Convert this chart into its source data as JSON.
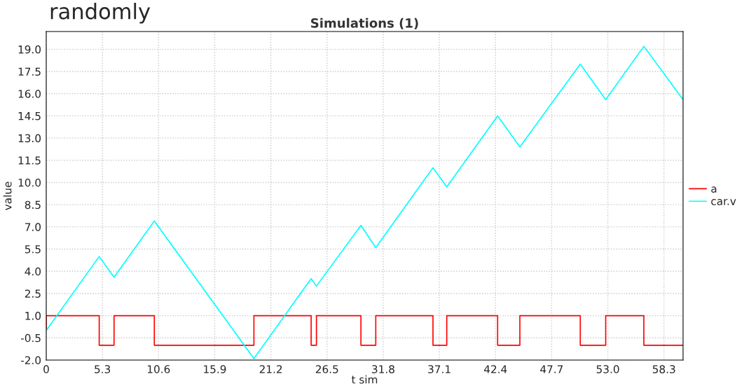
{
  "chart_data": {
    "type": "line",
    "title": "Simulations (1)",
    "xlabel": "t sim",
    "ylabel": "value",
    "annotations": [
      "randomly"
    ],
    "xlim": [
      0,
      60.1
    ],
    "ylim": [
      -2.0,
      20.2
    ],
    "xticks": [
      {
        "value": 0,
        "label": "0"
      },
      5.3,
      10.6,
      15.9,
      21.2,
      26.5,
      31.8,
      37.1,
      42.4,
      47.7,
      {
        "value": 53.0,
        "label": "53.0"
      },
      58.3
    ],
    "yticks": [
      {
        "value": -2.0,
        "label": "-2.0"
      },
      {
        "value": -0.5,
        "label": "-0.5"
      },
      {
        "value": 1.0,
        "label": "1.0"
      },
      2.5,
      {
        "value": 4.0,
        "label": "4.0"
      },
      5.5,
      {
        "value": 7.0,
        "label": "7.0"
      },
      8.5,
      {
        "value": 10.0,
        "label": "10.0"
      },
      11.5,
      {
        "value": 13.0,
        "label": "13.0"
      },
      14.5,
      {
        "value": 16.0,
        "label": "16.0"
      },
      17.5,
      {
        "value": 19.0,
        "label": "19.0"
      }
    ],
    "grid": true,
    "legend": "right",
    "series": [
      {
        "name": "a",
        "type": "step",
        "color": "#ff0000",
        "x": [
          0,
          0.0,
          5.0,
          6.4,
          10.2,
          19.6,
          25.0,
          25.5,
          29.7,
          31.1,
          36.5,
          37.8,
          42.6,
          44.7,
          50.4,
          52.8,
          56.4,
          60.1
        ],
        "values": [
          0,
          1,
          -1,
          1,
          -1,
          1,
          -1,
          1,
          -1,
          1,
          -1,
          1,
          -1,
          1,
          -1,
          1,
          -1,
          -1
        ]
      },
      {
        "name": "car.v",
        "color": "#00ffff",
        "x": [
          0,
          5.0,
          6.4,
          10.2,
          19.6,
          25.0,
          25.5,
          29.7,
          31.1,
          36.5,
          37.8,
          42.6,
          44.7,
          50.4,
          52.8,
          56.4,
          60.1
        ],
        "values": [
          0,
          5.0,
          3.6,
          7.4,
          -1.9,
          3.5,
          3.0,
          7.1,
          5.6,
          11.0,
          9.7,
          14.5,
          12.4,
          18.0,
          15.6,
          19.2,
          15.6
        ]
      }
    ]
  }
}
